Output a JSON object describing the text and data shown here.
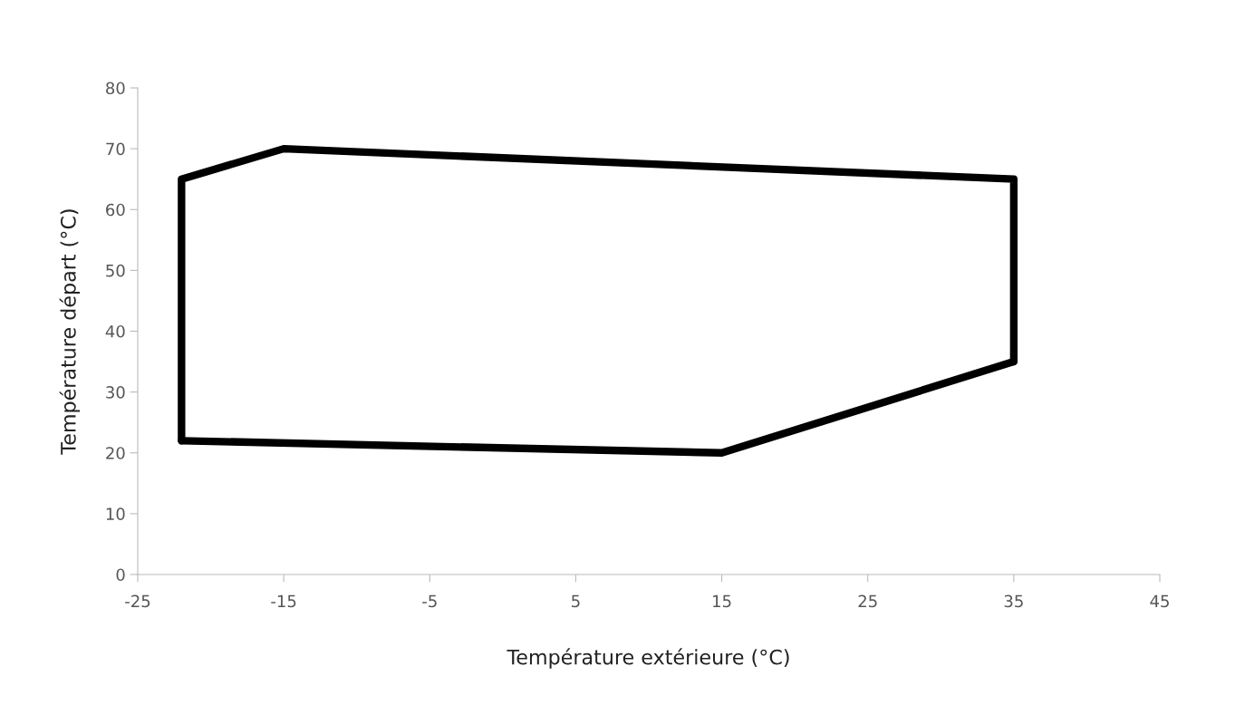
{
  "chart_data": {
    "type": "line",
    "xlabel": "Température extérieure (°C)",
    "ylabel": "Température départ (°C)",
    "series": [
      {
        "color": "#000000",
        "x": [
          -22,
          -22,
          -15,
          35,
          35
        ],
        "values": [
          22,
          65,
          70,
          65,
          35
        ]
      },
      {
        "color": "#000000",
        "x": [
          -22,
          15,
          35
        ],
        "values": [
          22,
          20,
          35
        ]
      }
    ],
    "xlim": [
      -25,
      45
    ],
    "xticks": [
      -25,
      -15,
      -5,
      5,
      15,
      25,
      35,
      45
    ],
    "ylim": [
      0,
      80
    ],
    "yticks": [
      0,
      10,
      20,
      30,
      40,
      50,
      60,
      70,
      80
    ],
    "grid": false,
    "legend": false,
    "marker": "none",
    "line_style": "solid"
  }
}
